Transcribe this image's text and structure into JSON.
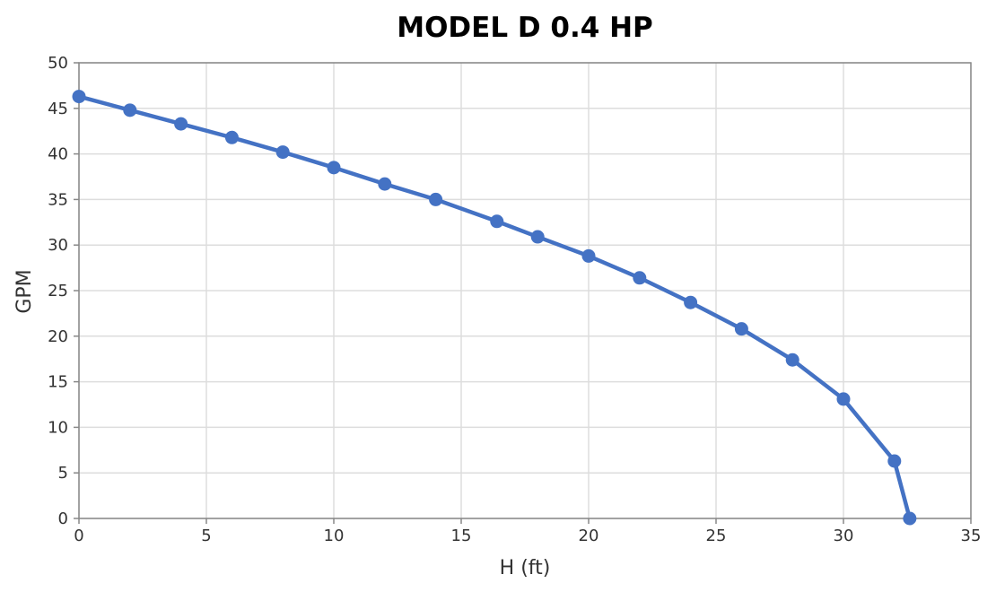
{
  "chart_data": {
    "type": "line",
    "title": "MODEL D 0.4 HP",
    "xlabel": "H (ft)",
    "ylabel": "GPM",
    "xlim": [
      0,
      35
    ],
    "ylim": [
      0,
      50
    ],
    "x_ticks": [
      0,
      5,
      10,
      15,
      20,
      25,
      30,
      35
    ],
    "y_ticks": [
      0,
      5,
      10,
      15,
      20,
      25,
      30,
      35,
      40,
      45,
      50
    ],
    "grid": true,
    "legend": "none",
    "series": [
      {
        "color": "#4472c4",
        "marker": "circle",
        "x": [
          0,
          2,
          4,
          6,
          8,
          10,
          12,
          14,
          16.4,
          18,
          20,
          22,
          24,
          26,
          28,
          30,
          32,
          32.6
        ],
        "y": [
          46.3,
          44.8,
          43.3,
          41.8,
          40.2,
          38.5,
          36.7,
          35.0,
          32.6,
          30.9,
          28.8,
          26.4,
          23.7,
          20.8,
          17.4,
          13.1,
          6.3,
          0
        ]
      }
    ]
  }
}
